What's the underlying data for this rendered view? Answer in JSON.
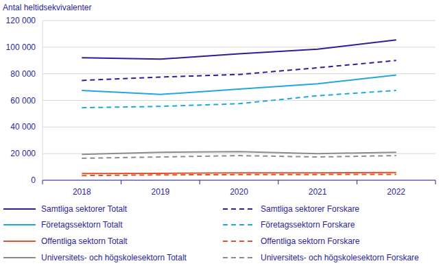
{
  "chart_data": {
    "type": "line",
    "y_label": "Antal heltidsekvivalenter",
    "categories": [
      "2018",
      "2019",
      "2020",
      "2021",
      "2022"
    ],
    "ylim": [
      0,
      120000
    ],
    "yticks": [
      0,
      {
        "value": 20000,
        "label": "20 000"
      },
      {
        "value": 40000,
        "label": "40 000"
      },
      {
        "value": 60000,
        "label": "60 000"
      },
      {
        "value": 80000,
        "label": "80 000"
      },
      {
        "value": 100000,
        "label": "100 000"
      },
      {
        "value": 120000,
        "label": "120 000"
      }
    ],
    "grid": true,
    "series": [
      {
        "name": "Samtliga sektorer Totalt",
        "color": "#2a1f96",
        "line_style": "solid",
        "values": [
          92000,
          91000,
          95000,
          98500,
          105500
        ]
      },
      {
        "name": "Samtliga sektorer Forskare",
        "color": "#2a1f96",
        "line_style": "dashed",
        "values": [
          75000,
          77500,
          79500,
          84500,
          90000
        ]
      },
      {
        "name": "Företagssektorn Totalt",
        "color": "#1fa8dc",
        "line_style": "solid",
        "values": [
          67500,
          64500,
          68500,
          72500,
          79000
        ]
      },
      {
        "name": "Företagssektorn Forskare",
        "color": "#1fa8dc",
        "line_style": "dashed",
        "values": [
          54500,
          55500,
          57500,
          63500,
          67500
        ]
      },
      {
        "name": "Offentliga sektorn Totalt",
        "color": "#e2512c",
        "line_style": "solid",
        "values": [
          5000,
          5200,
          5500,
          5600,
          5800
        ]
      },
      {
        "name": "Offentliga sektorn Forskare",
        "color": "#e2512c",
        "line_style": "dashed",
        "values": [
          3500,
          4000,
          4200,
          4300,
          4400
        ]
      },
      {
        "name": "Universitets- och högskolesektorn Totalt",
        "color": "#8c8c8c",
        "line_style": "solid",
        "values": [
          19500,
          21000,
          21500,
          20000,
          21000
        ]
      },
      {
        "name": "Universitets- och högskolesektorn Forskare",
        "color": "#8c8c8c",
        "line_style": "dashed",
        "values": [
          16500,
          17500,
          18500,
          17500,
          18500
        ]
      }
    ]
  }
}
